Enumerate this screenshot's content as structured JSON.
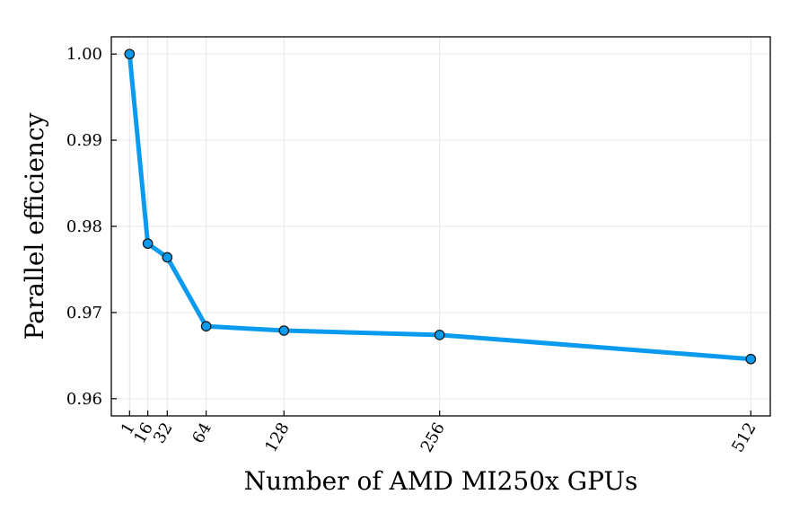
{
  "chart_data": {
    "type": "line",
    "title": "",
    "xlabel": "Number of AMD MI250x GPUs",
    "ylabel": "Parallel efficiency",
    "x": [
      1,
      16,
      32,
      64,
      128,
      256,
      512
    ],
    "series": [
      {
        "values": [
          1.0,
          0.978,
          0.9764,
          0.9684,
          0.9679,
          0.9674,
          0.9646
        ]
      }
    ],
    "xticks": [
      1,
      16,
      32,
      64,
      128,
      256,
      512
    ],
    "xtick_labels": [
      "1",
      "16",
      "32",
      "64",
      "128",
      "256",
      "512"
    ],
    "yticks": [
      0.96,
      0.97,
      0.98,
      0.99,
      1.0
    ],
    "ytick_labels": [
      "0.96",
      "0.97",
      "0.98",
      "0.99",
      "1.00"
    ],
    "xlim": [
      -14,
      528
    ],
    "ylim": [
      0.958,
      1.002
    ],
    "grid": true,
    "legend": "none",
    "colors": {
      "line": "#0a9bef",
      "marker_fill": "#0a9bef",
      "marker_edge": "#1a1a1a",
      "frame": "#000000",
      "grid": "#e6e6e6"
    }
  }
}
